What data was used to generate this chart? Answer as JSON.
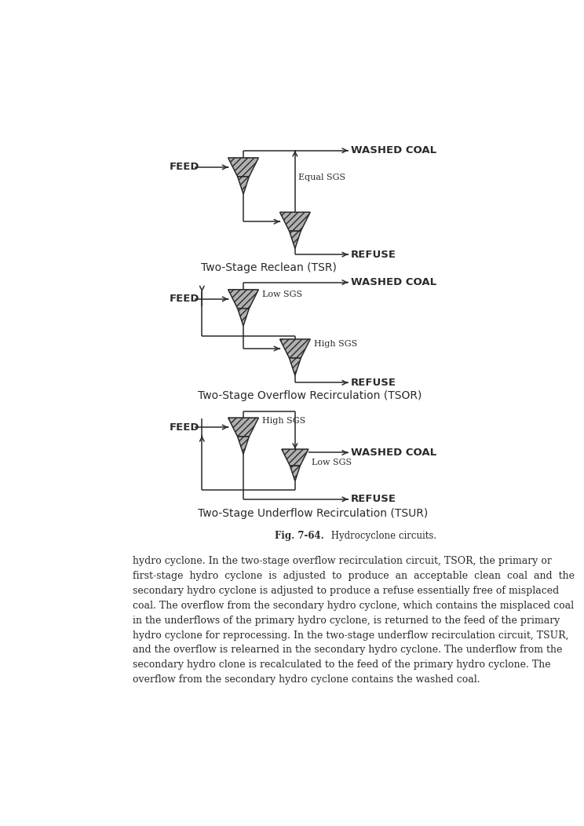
{
  "background_color": "#ffffff",
  "page_width": 7.44,
  "page_height": 10.52,
  "text_paragraph": "hydro cyclone. In the two-stage overflow recirculation circuit, TSOR, the primary or first-stage  hydro  cyclone  is  adjusted  to  produce  an  acceptable  clean  coal  and  the secondary hydro cyclone is adjusted to produce a refuse essentially free of misplaced coal. The overflow from the secondary hydro cyclone, which contains the misplaced coal in the underflows of the primary hydro cyclone, is returned to the feed of the primary hydro cyclone for reprocessing. In the two-stage underflow recirculation circuit, TSUR, and the overflow is relearned in the secondary hydro cyclone. The underflow from the secondary hydro clone is recalculated to the feed of the primary hydro cyclone. The overflow from the secondary hydro cyclone contains the washed coal.",
  "fig_caption_bold": "Fig. 7-64.",
  "fig_caption_normal": " Hydrocyclone circuits.",
  "diagram1_label": "Two-Stage Reclean (TSR)",
  "diagram2_label": "Two-Stage Overflow Recirculation (TSOR)",
  "diagram3_label": "Two-Stage Underflow Recirculation (TSUR)",
  "line_color": "#2a2a2a",
  "text_color": "#2a2a2a",
  "cyclone_fill": "#b0b0b0",
  "cyclone_edge": "#2a2a2a"
}
